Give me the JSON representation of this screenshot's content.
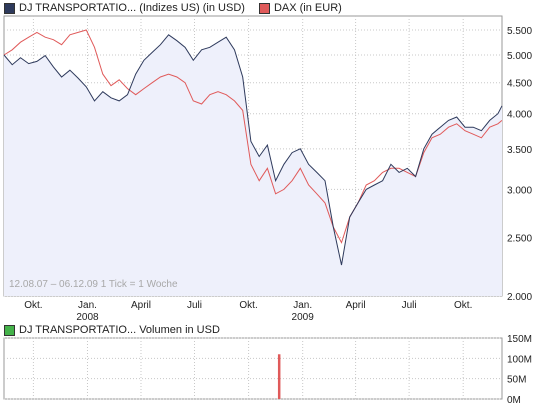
{
  "legend": {
    "series1": "DJ TRANSPORTATIO... (Indizes US) (in USD)",
    "series2": "DAX (in EUR)",
    "volume": "DJ TRANSPORTATIO... Volumen in USD"
  },
  "colors": {
    "series1": "#2e3a5c",
    "series2": "#e05a5a",
    "fill": "#eef0fb",
    "grid": "#c8c8c8",
    "volume_bar": "#e05a5a",
    "volume_swatch": "#44b24a"
  },
  "range_text": "12.08.07 – 06.12.09   1 Tick = 1 Woche",
  "chart_data": [
    {
      "type": "line",
      "y_scale": "log",
      "ylim": [
        2000,
        5800
      ],
      "y_ticks": [
        {
          "value": 5500,
          "label": "5.500"
        },
        {
          "value": 5000,
          "label": "5.000"
        },
        {
          "value": 4500,
          "label": "4.500"
        },
        {
          "value": 4000,
          "label": "4.000"
        },
        {
          "value": 3500,
          "label": "3.500"
        },
        {
          "value": 3000,
          "label": "3.000"
        },
        {
          "value": 2500,
          "label": "2.500"
        },
        {
          "value": 2000,
          "label": "2.000"
        }
      ],
      "x_ticks": [
        {
          "date": "2007-10-01",
          "label": "Okt."
        },
        {
          "date": "2008-01-01",
          "label": "Jan.",
          "sublabel": "2008"
        },
        {
          "date": "2008-04-01",
          "label": "April"
        },
        {
          "date": "2008-07-01",
          "label": "Juli"
        },
        {
          "date": "2008-10-01",
          "label": "Okt."
        },
        {
          "date": "2009-01-01",
          "label": "Jan.",
          "sublabel": "2009"
        },
        {
          "date": "2009-04-01",
          "label": "April"
        },
        {
          "date": "2009-07-01",
          "label": "Juli"
        },
        {
          "date": "2009-10-01",
          "label": "Okt."
        }
      ],
      "x_start": "2007-08-12",
      "x_end": "2009-12-06",
      "series": [
        {
          "name": "DJ TRANSPORTATIO... (Indizes US) (in USD)",
          "points": [
            [
              "2007-08-12",
              5000
            ],
            [
              "2007-08-26",
              4820
            ],
            [
              "2007-09-09",
              4950
            ],
            [
              "2007-09-23",
              4840
            ],
            [
              "2007-10-07",
              4880
            ],
            [
              "2007-10-21",
              4990
            ],
            [
              "2007-11-04",
              4780
            ],
            [
              "2007-11-18",
              4600
            ],
            [
              "2007-12-02",
              4720
            ],
            [
              "2007-12-16",
              4580
            ],
            [
              "2007-12-30",
              4430
            ],
            [
              "2008-01-13",
              4200
            ],
            [
              "2008-01-27",
              4350
            ],
            [
              "2008-02-10",
              4250
            ],
            [
              "2008-02-24",
              4200
            ],
            [
              "2008-03-09",
              4300
            ],
            [
              "2008-03-23",
              4650
            ],
            [
              "2008-04-06",
              4900
            ],
            [
              "2008-04-20",
              5050
            ],
            [
              "2008-05-04",
              5200
            ],
            [
              "2008-05-18",
              5400
            ],
            [
              "2008-06-01",
              5280
            ],
            [
              "2008-06-15",
              5150
            ],
            [
              "2008-06-29",
              4900
            ],
            [
              "2008-07-13",
              5100
            ],
            [
              "2008-07-27",
              5150
            ],
            [
              "2008-08-10",
              5250
            ],
            [
              "2008-08-24",
              5350
            ],
            [
              "2008-09-07",
              5100
            ],
            [
              "2008-09-21",
              4600
            ],
            [
              "2008-10-05",
              3600
            ],
            [
              "2008-10-19",
              3400
            ],
            [
              "2008-11-02",
              3550
            ],
            [
              "2008-11-16",
              3100
            ],
            [
              "2008-11-30",
              3300
            ],
            [
              "2008-12-14",
              3450
            ],
            [
              "2008-12-28",
              3500
            ],
            [
              "2009-01-11",
              3300
            ],
            [
              "2009-01-25",
              3200
            ],
            [
              "2009-02-08",
              3100
            ],
            [
              "2009-02-22",
              2600
            ],
            [
              "2009-03-08",
              2250
            ],
            [
              "2009-03-22",
              2700
            ],
            [
              "2009-04-05",
              2850
            ],
            [
              "2009-04-19",
              3000
            ],
            [
              "2009-05-03",
              3050
            ],
            [
              "2009-05-17",
              3100
            ],
            [
              "2009-05-31",
              3300
            ],
            [
              "2009-06-14",
              3200
            ],
            [
              "2009-06-28",
              3250
            ],
            [
              "2009-07-12",
              3150
            ],
            [
              "2009-07-26",
              3500
            ],
            [
              "2009-08-09",
              3700
            ],
            [
              "2009-08-23",
              3800
            ],
            [
              "2009-09-06",
              3900
            ],
            [
              "2009-09-20",
              3950
            ],
            [
              "2009-10-04",
              3800
            ],
            [
              "2009-10-18",
              3800
            ],
            [
              "2009-11-01",
              3750
            ],
            [
              "2009-11-15",
              3900
            ],
            [
              "2009-11-29",
              4000
            ],
            [
              "2009-12-06",
              4120
            ]
          ]
        },
        {
          "name": "DAX (in EUR)",
          "points": [
            [
              "2007-08-12",
              5000
            ],
            [
              "2007-08-26",
              5100
            ],
            [
              "2007-09-09",
              5250
            ],
            [
              "2007-09-23",
              5350
            ],
            [
              "2007-10-07",
              5450
            ],
            [
              "2007-10-21",
              5350
            ],
            [
              "2007-11-04",
              5300
            ],
            [
              "2007-11-18",
              5200
            ],
            [
              "2007-12-02",
              5400
            ],
            [
              "2007-12-16",
              5450
            ],
            [
              "2007-12-30",
              5500
            ],
            [
              "2008-01-13",
              5150
            ],
            [
              "2008-01-27",
              4650
            ],
            [
              "2008-02-10",
              4450
            ],
            [
              "2008-02-24",
              4550
            ],
            [
              "2008-03-09",
              4400
            ],
            [
              "2008-03-23",
              4300
            ],
            [
              "2008-04-06",
              4400
            ],
            [
              "2008-04-20",
              4500
            ],
            [
              "2008-05-04",
              4600
            ],
            [
              "2008-05-18",
              4650
            ],
            [
              "2008-06-01",
              4600
            ],
            [
              "2008-06-15",
              4500
            ],
            [
              "2008-06-29",
              4200
            ],
            [
              "2008-07-13",
              4150
            ],
            [
              "2008-07-27",
              4300
            ],
            [
              "2008-08-10",
              4350
            ],
            [
              "2008-08-24",
              4300
            ],
            [
              "2008-09-07",
              4200
            ],
            [
              "2008-09-21",
              4050
            ],
            [
              "2008-10-05",
              3300
            ],
            [
              "2008-10-19",
              3100
            ],
            [
              "2008-11-02",
              3250
            ],
            [
              "2008-11-16",
              2950
            ],
            [
              "2008-11-30",
              3000
            ],
            [
              "2008-12-14",
              3100
            ],
            [
              "2008-12-28",
              3250
            ],
            [
              "2009-01-11",
              3050
            ],
            [
              "2009-01-25",
              2950
            ],
            [
              "2009-02-08",
              2850
            ],
            [
              "2009-02-22",
              2600
            ],
            [
              "2009-03-08",
              2450
            ],
            [
              "2009-03-22",
              2700
            ],
            [
              "2009-04-05",
              2850
            ],
            [
              "2009-04-19",
              3050
            ],
            [
              "2009-05-03",
              3100
            ],
            [
              "2009-05-17",
              3200
            ],
            [
              "2009-05-31",
              3250
            ],
            [
              "2009-06-14",
              3250
            ],
            [
              "2009-06-28",
              3200
            ],
            [
              "2009-07-12",
              3150
            ],
            [
              "2009-07-26",
              3450
            ],
            [
              "2009-08-09",
              3650
            ],
            [
              "2009-08-23",
              3700
            ],
            [
              "2009-09-06",
              3800
            ],
            [
              "2009-09-20",
              3850
            ],
            [
              "2009-10-04",
              3750
            ],
            [
              "2009-10-18",
              3700
            ],
            [
              "2009-11-01",
              3650
            ],
            [
              "2009-11-15",
              3800
            ],
            [
              "2009-11-29",
              3850
            ],
            [
              "2009-12-06",
              3900
            ]
          ]
        }
      ]
    },
    {
      "type": "bar",
      "title": "DJ TRANSPORTATIO... Volumen in USD",
      "ylim": [
        0,
        150000000
      ],
      "y_ticks": [
        {
          "value": 150000000,
          "label": "150M"
        },
        {
          "value": 100000000,
          "label": "100M"
        },
        {
          "value": 50000000,
          "label": "50M"
        },
        {
          "value": 0,
          "label": "0M"
        }
      ],
      "bars": [
        [
          "2008-10-05",
          110000000
        ]
      ]
    }
  ]
}
